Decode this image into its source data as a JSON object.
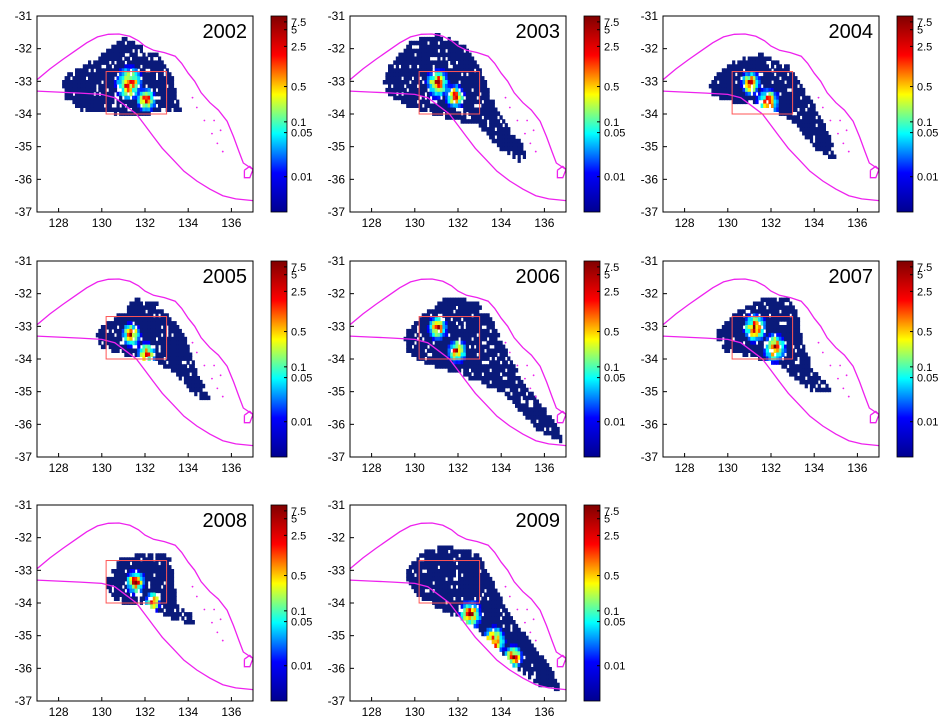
{
  "figure": {
    "x_ticks": [
      "128",
      "130",
      "132",
      "134",
      "136"
    ],
    "y_ticks": [
      "-31",
      "-32",
      "-33",
      "-34",
      "-35",
      "-36",
      "-37"
    ],
    "colorbar_ticks": [
      "7.5",
      "5",
      "2.5",
      "0.5",
      "0.1",
      "0.05",
      "0.01"
    ],
    "colormap": [
      "#00008f",
      "#0000ff",
      "#00ffff",
      "#ffff00",
      "#ff0000",
      "#800000"
    ],
    "colors": {
      "coastline": "#ee22ee",
      "box": "#ff5555",
      "trace": "#0a1a7a"
    }
  },
  "panels": [
    {
      "year": "2002"
    },
    {
      "year": "2003"
    },
    {
      "year": "2004"
    },
    {
      "year": "2005"
    },
    {
      "year": "2006"
    },
    {
      "year": "2007"
    },
    {
      "year": "2008"
    },
    {
      "year": "2009"
    }
  ]
}
